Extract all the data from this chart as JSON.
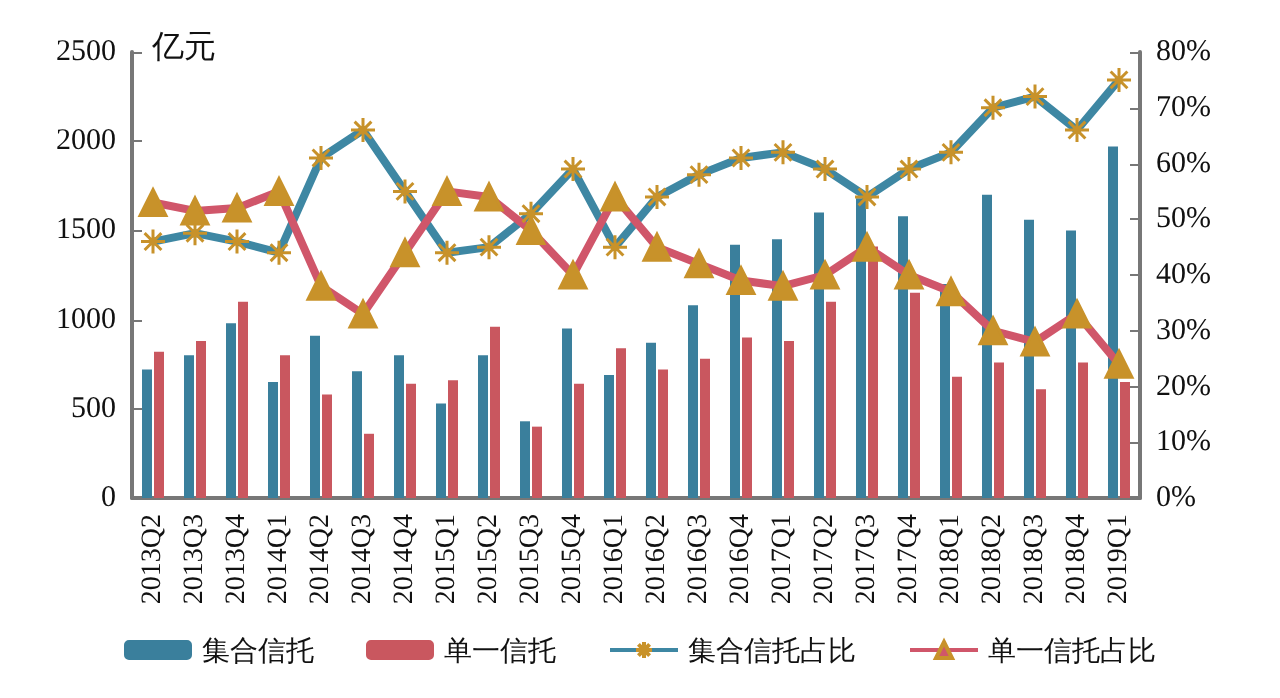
{
  "chart_data": {
    "type": "bar",
    "ylabel": "亿元",
    "categories": [
      "2013Q2",
      "2013Q3",
      "2013Q4",
      "2014Q1",
      "2014Q2",
      "2014Q3",
      "2014Q4",
      "2015Q1",
      "2015Q2",
      "2015Q3",
      "2015Q4",
      "2016Q1",
      "2016Q2",
      "2016Q3",
      "2016Q4",
      "2017Q1",
      "2017Q2",
      "2017Q3",
      "2017Q4",
      "2018Q1",
      "2018Q2",
      "2018Q3",
      "2018Q4",
      "2019Q1"
    ],
    "series": [
      {
        "name": "集合信托",
        "color": "#3a7f9c",
        "values": [
          720,
          800,
          980,
          650,
          910,
          710,
          800,
          530,
          800,
          430,
          950,
          690,
          870,
          1080,
          1420,
          1450,
          1600,
          1680,
          1580,
          1200,
          1700,
          1560,
          1500,
          1970
        ]
      },
      {
        "name": "单一信托",
        "color": "#c9575f",
        "values": [
          820,
          880,
          1100,
          800,
          580,
          360,
          640,
          660,
          960,
          400,
          640,
          840,
          720,
          780,
          900,
          880,
          1100,
          1410,
          1150,
          680,
          760,
          610,
          760,
          650
        ]
      },
      {
        "name": "集合信托占比",
        "type": "line",
        "axis": "y2",
        "color": "#3e87a3",
        "marker": "cross",
        "values": [
          46,
          47.5,
          46,
          44,
          61,
          66,
          55,
          44,
          45,
          51,
          59,
          45,
          54,
          58,
          61,
          62,
          59,
          54,
          59,
          62,
          70,
          72,
          66,
          75
        ]
      },
      {
        "name": "单一信托占比",
        "type": "line",
        "axis": "y2",
        "color": "#d0566a",
        "marker": "triangle",
        "values": [
          53,
          51.5,
          52,
          55,
          38,
          33,
          44,
          55,
          54,
          48,
          40,
          54,
          45,
          42,
          39,
          38,
          40,
          45,
          40,
          37,
          30,
          28,
          33,
          24
        ]
      }
    ],
    "ylim": [
      0,
      2500
    ],
    "yticks": [
      0,
      500,
      1000,
      1500,
      2000,
      2500
    ],
    "y2lim": [
      0,
      80
    ],
    "y2ticks": [
      {
        "value": 0,
        "label": "0%"
      },
      {
        "value": 10,
        "label": "10%"
      },
      {
        "value": 20,
        "label": "20%"
      },
      {
        "value": 30,
        "label": "30%"
      },
      {
        "value": 40,
        "label": "40%"
      },
      {
        "value": 50,
        "label": "50%"
      },
      {
        "value": 60,
        "label": "60%"
      },
      {
        "value": 70,
        "label": "70%"
      },
      {
        "value": 80,
        "label": "80%"
      }
    ],
    "legend": "bottom",
    "grid": false
  }
}
